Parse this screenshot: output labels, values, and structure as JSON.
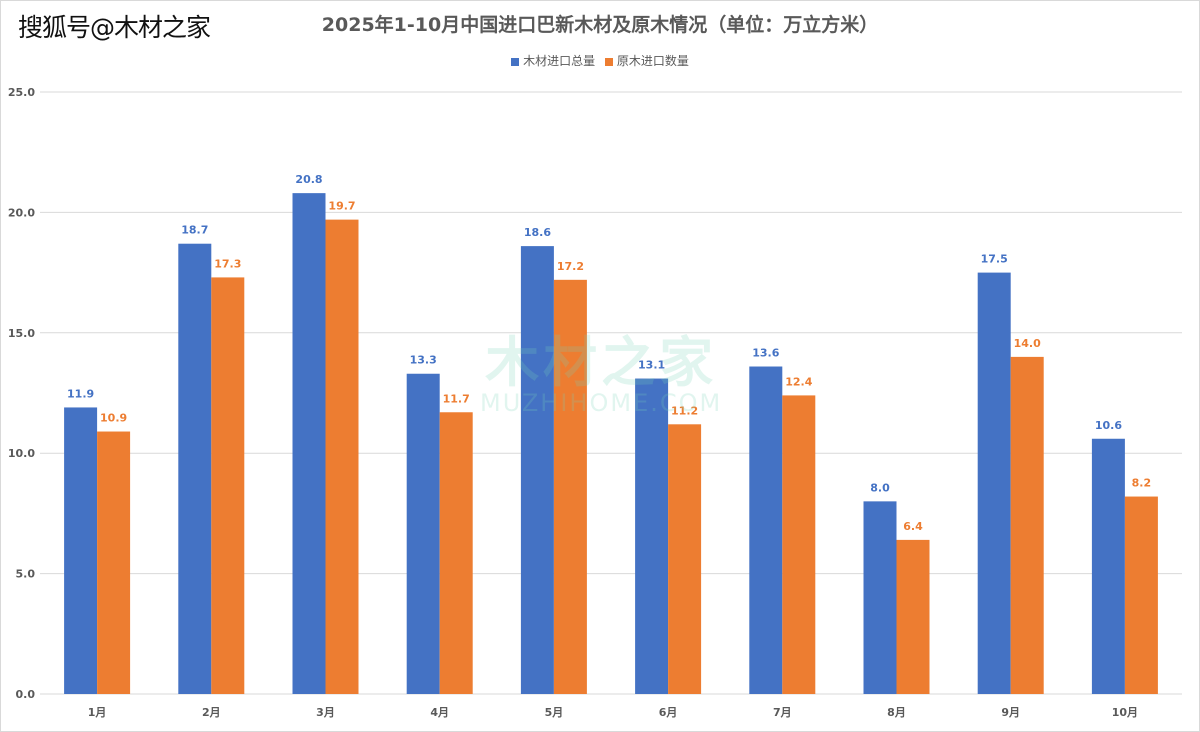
{
  "source_label": "搜狐号@木材之家",
  "watermark": {
    "text": "木材之家",
    "sub": "MUZHIHOME.COM"
  },
  "chart_data": {
    "type": "bar",
    "title": "2025年1-10月中国进口巴新木材及原木情况（单位：万立方米）",
    "categories": [
      "1月",
      "2月",
      "3月",
      "4月",
      "5月",
      "6月",
      "7月",
      "8月",
      "9月",
      "10月"
    ],
    "series": [
      {
        "name": "木材进口总量",
        "color": "#4472C4",
        "values": [
          11.9,
          18.7,
          20.8,
          13.3,
          18.6,
          13.1,
          13.6,
          8.0,
          17.5,
          10.6
        ]
      },
      {
        "name": "原木进口数量",
        "color": "#ED7D31",
        "values": [
          10.9,
          17.3,
          19.7,
          11.7,
          17.2,
          11.2,
          12.4,
          6.4,
          14.0,
          8.2
        ]
      }
    ],
    "ylim": [
      0,
      25
    ],
    "yticks": [
      "0.0",
      "5.0",
      "10.0",
      "15.0",
      "20.0",
      "25.0"
    ],
    "grid": true,
    "legend_position": "top-center",
    "xlabel": "",
    "ylabel": ""
  }
}
